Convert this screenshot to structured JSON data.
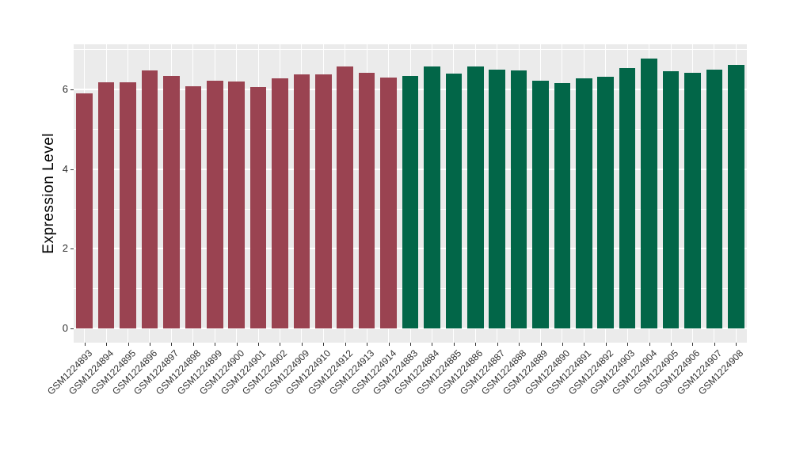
{
  "chart_data": {
    "type": "bar",
    "title": "",
    "xlabel": "",
    "ylabel": "Expression Level",
    "ylim": [
      0,
      7.16
    ],
    "yticks": [
      0,
      2,
      4,
      6
    ],
    "yminor": [
      1,
      3,
      5,
      7
    ],
    "grid": "on",
    "legend": "none",
    "panel_background": "#EBEBEB",
    "gridline_color": "#FFFFFF",
    "tick_color": "#333333",
    "label_color": "#303030",
    "bar_groups": [
      {
        "name": "maroon-group",
        "color": "#9A4351"
      },
      {
        "name": "green-group",
        "color": "#026648"
      }
    ],
    "categories": [
      "GSM1224893",
      "GSM1224894",
      "GSM1224895",
      "GSM1224896",
      "GSM1224897",
      "GSM1224898",
      "GSM1224899",
      "GSM1224900",
      "GSM1224901",
      "GSM1224902",
      "GSM1224909",
      "GSM1224910",
      "GSM1224912",
      "GSM1224913",
      "GSM1224914",
      "GSM1224883",
      "GSM1224884",
      "GSM1224885",
      "GSM1224886",
      "GSM1224887",
      "GSM1224888",
      "GSM1224889",
      "GSM1224890",
      "GSM1224891",
      "GSM1224892",
      "GSM1224903",
      "GSM1224904",
      "GSM1224905",
      "GSM1224906",
      "GSM1224907",
      "GSM1224908"
    ],
    "values": [
      5.9,
      6.17,
      6.17,
      6.47,
      6.33,
      6.08,
      6.22,
      6.2,
      6.06,
      6.28,
      6.37,
      6.38,
      6.57,
      6.41,
      6.3,
      6.34,
      6.57,
      6.39,
      6.57,
      6.49,
      6.47,
      6.22,
      6.16,
      6.27,
      6.31,
      6.54,
      6.78,
      6.46,
      6.41,
      6.5,
      6.62
    ],
    "group_index": [
      0,
      0,
      0,
      0,
      0,
      0,
      0,
      0,
      0,
      0,
      0,
      0,
      0,
      0,
      0,
      1,
      1,
      1,
      1,
      1,
      1,
      1,
      1,
      1,
      1,
      1,
      1,
      1,
      1,
      1,
      1
    ]
  }
}
